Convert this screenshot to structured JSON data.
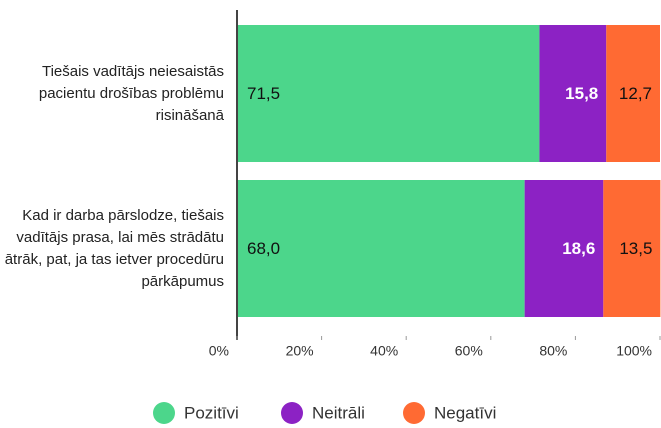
{
  "chart_data": {
    "type": "stacked_bar_horizontal",
    "categories": [
      "Tiešais vadītājs neiesaistās pacientu drošības problēmu risināšanā",
      "Kad ir darba pārslodze, tiešais vadītājs prasa, lai mēs strādātu ātrāk, pat, ja tas ietver procedūru pārkāpumus"
    ],
    "series": [
      {
        "name": "Pozitīvi",
        "color": "#4cd68b",
        "values": [
          71.5,
          68.0
        ],
        "value_labels": [
          "71,5",
          "68,0"
        ]
      },
      {
        "name": "Neitrāli",
        "color": "#8c22c4",
        "values": [
          15.8,
          18.6
        ],
        "value_labels": [
          "15,8",
          "18,6"
        ]
      },
      {
        "name": "Negatīvi",
        "color": "#ff6a33",
        "values": [
          12.7,
          13.5
        ],
        "value_labels": [
          "12,7",
          "13,5"
        ]
      }
    ],
    "xlim": [
      0,
      100
    ],
    "xticks": [
      {
        "value": 0,
        "label": "0%"
      },
      {
        "value": 20,
        "label": "20%"
      },
      {
        "value": 40,
        "label": "40%"
      },
      {
        "value": 60,
        "label": "60%"
      },
      {
        "value": 80,
        "label": "80%"
      },
      {
        "value": 100,
        "label": "100%"
      }
    ],
    "legend": "bottom"
  }
}
